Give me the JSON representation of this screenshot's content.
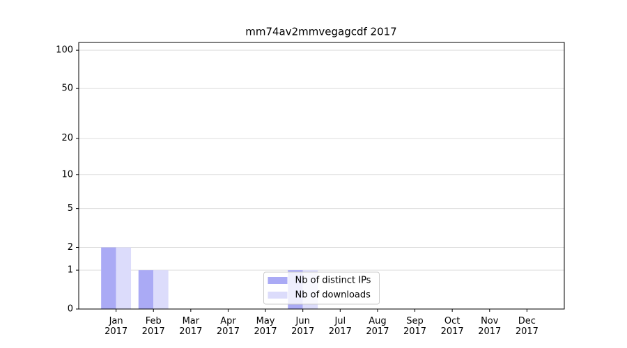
{
  "chart_data": {
    "type": "bar",
    "title": "mm74av2mmvegagcdf 2017",
    "categories": [
      "Jan 2017",
      "Feb 2017",
      "Mar 2017",
      "Apr 2017",
      "May 2017",
      "Jun 2017",
      "Jul 2017",
      "Aug 2017",
      "Sep 2017",
      "Oct 2017",
      "Nov 2017",
      "Dec 2017"
    ],
    "series": [
      {
        "name": "Nb of distinct IPs",
        "color": "#aaaaf5",
        "values": [
          2,
          1,
          0,
          0,
          0,
          1,
          0,
          0,
          0,
          0,
          0,
          0
        ]
      },
      {
        "name": "Nb of downloads",
        "color": "#dcdcfb",
        "values": [
          2,
          1,
          0,
          0,
          0,
          1,
          0,
          0,
          0,
          0,
          0,
          0
        ]
      }
    ],
    "yscale": "log1p",
    "ylim": [
      0,
      115
    ],
    "yticks": [
      0,
      1,
      2,
      5,
      10,
      20,
      50,
      100
    ],
    "grid": true,
    "legend": "lower center"
  }
}
